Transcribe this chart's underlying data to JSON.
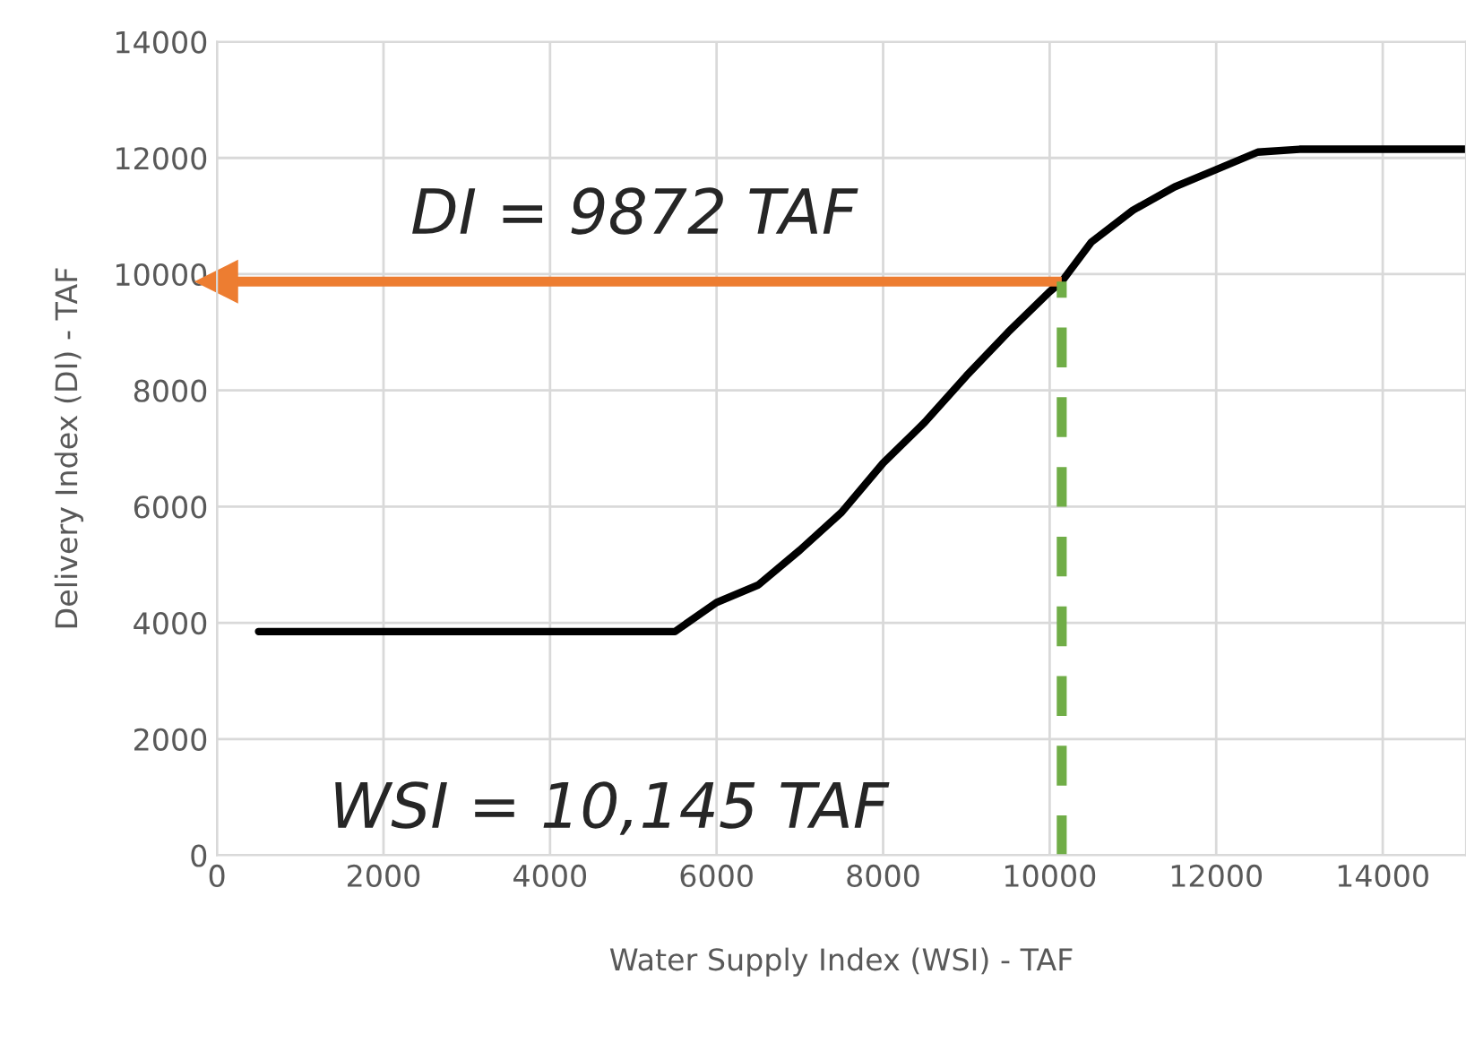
{
  "chart_data": {
    "type": "line",
    "xlabel": "Water Supply Index (WSI) - TAF",
    "ylabel": "Delivery Index (DI) - TAF",
    "x": [
      500,
      5500,
      6000,
      6500,
      7000,
      7500,
      8000,
      8500,
      9000,
      9500,
      10000,
      10145,
      10500,
      11000,
      11500,
      12000,
      12500,
      13000,
      15000
    ],
    "series": [
      {
        "color": "#000000",
        "values": [
          3850,
          3850,
          4350,
          4650,
          5250,
          5900,
          6750,
          7450,
          8250,
          9000,
          9700,
          9872,
          10550,
          11100,
          11500,
          11800,
          12100,
          12150,
          12150
        ]
      }
    ],
    "ref_lines": [
      {
        "axis": "y",
        "value": 9872,
        "label": "DI = 9872 TAF",
        "color": "#ed7d31",
        "line_style": "solid"
      },
      {
        "axis": "x",
        "value": 10145,
        "label": "WSI = 10,145 TAF",
        "color": "#70ad47",
        "line_style": "dashed"
      }
    ],
    "xlim": [
      0,
      15000
    ],
    "xticks": [
      0,
      2000,
      4000,
      6000,
      8000,
      10000,
      12000,
      14000
    ],
    "ylim": [
      0,
      14000
    ],
    "yticks": [
      0,
      2000,
      4000,
      6000,
      8000,
      10000,
      12000,
      14000
    ],
    "grid": true,
    "marker": "none",
    "line_style": "solid"
  }
}
